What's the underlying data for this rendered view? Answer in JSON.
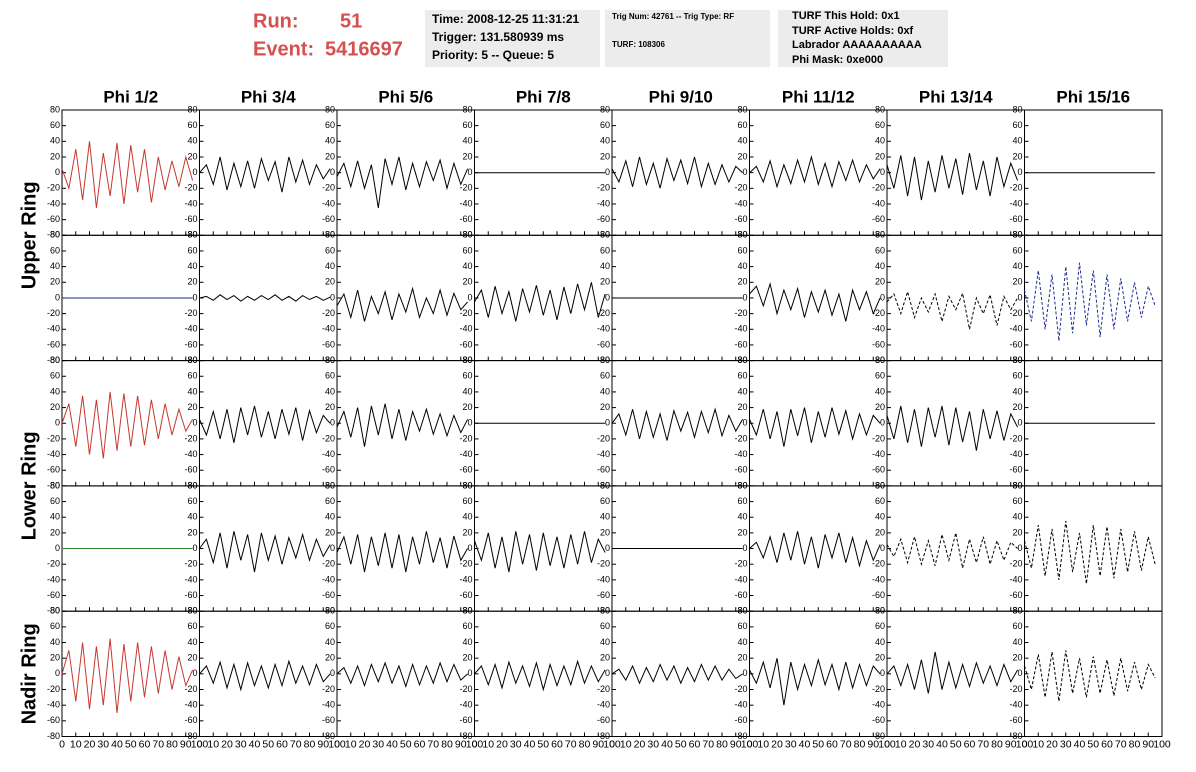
{
  "header": {
    "run_label": "Run:",
    "run": "51",
    "event_label": "Event:",
    "event": "5416697"
  },
  "info_boxes": [
    [
      "Time: 2008-12-25 11:31:21",
      "Trigger: 131.580939 ms",
      "Priority: 5 -- Queue: 5"
    ],
    [
      "Trig Num: 42761 -- Trig Type: RF",
      "TURF: 108306"
    ],
    [
      "TURF This Hold: 0x1",
      "TURF Active Holds: 0xf",
      "Labrador AAAAAAAAAA",
      "Phi Mask: 0xe000"
    ]
  ],
  "columns": [
    "Phi 1/2",
    "Phi 3/4",
    "Phi 5/6",
    "Phi 7/8",
    "Phi 9/10",
    "Phi 11/12",
    "Phi 13/14",
    "Phi 15/16"
  ],
  "ring_labels": [
    "Upper Ring",
    "Lower Ring",
    "Nadir Ring"
  ],
  "axes": {
    "xlim": [
      0,
      100
    ],
    "ylim": [
      -80,
      80
    ],
    "xticks": [
      0,
      10,
      20,
      30,
      40,
      50,
      60,
      70,
      80,
      90,
      100
    ],
    "yticks": [
      -80,
      -60,
      -40,
      -20,
      0,
      20,
      40,
      60,
      80
    ],
    "sample_x": [
      0,
      5,
      10,
      15,
      20,
      25,
      30,
      35,
      40,
      45,
      50,
      55,
      60,
      65,
      70,
      75,
      80,
      85,
      90,
      95
    ]
  },
  "panels": [
    [
      {
        "color": "#c8372d",
        "dashed": false,
        "values": [
          5,
          -20,
          30,
          -35,
          40,
          -45,
          25,
          -30,
          38,
          -40,
          35,
          -25,
          30,
          -38,
          20,
          -22,
          15,
          -18,
          20,
          -10
        ]
      },
      {
        "color": "#000000",
        "dashed": false,
        "values": [
          0,
          10,
          -15,
          20,
          -22,
          12,
          -18,
          15,
          -20,
          18,
          -10,
          14,
          -25,
          20,
          -12,
          16,
          -15,
          10,
          -8,
          5
        ]
      },
      {
        "color": "#000000",
        "dashed": false,
        "values": [
          -5,
          12,
          -18,
          15,
          -20,
          10,
          -45,
          18,
          -15,
          20,
          -22,
          12,
          -18,
          14,
          -10,
          16,
          -20,
          12,
          -15,
          5
        ]
      },
      {
        "color": "#000000",
        "dashed": false,
        "values": [
          0,
          0,
          0,
          0,
          0,
          0,
          0,
          0,
          0,
          0,
          0,
          0,
          0,
          0,
          0,
          0,
          0,
          0,
          0,
          0
        ]
      },
      {
        "color": "#000000",
        "dashed": false,
        "values": [
          5,
          -12,
          15,
          -18,
          20,
          -15,
          12,
          -20,
          18,
          -10,
          16,
          -14,
          20,
          -18,
          12,
          -15,
          10,
          -12,
          8,
          0
        ]
      },
      {
        "color": "#000000",
        "dashed": false,
        "values": [
          0,
          8,
          -12,
          15,
          -18,
          10,
          -14,
          16,
          -12,
          20,
          -15,
          12,
          -18,
          14,
          -10,
          16,
          -12,
          10,
          -8,
          5
        ]
      },
      {
        "color": "#000000",
        "dashed": false,
        "values": [
          10,
          -20,
          22,
          -30,
          20,
          -35,
          15,
          -25,
          22,
          -20,
          18,
          -28,
          25,
          -22,
          15,
          -30,
          20,
          -18,
          12,
          -10
        ]
      },
      {
        "color": "#000000",
        "dashed": false,
        "values": [
          0,
          0,
          0,
          0,
          0,
          0,
          0,
          0,
          0,
          0,
          0,
          0,
          0,
          0,
          0,
          0,
          0,
          0,
          0,
          0
        ]
      }
    ],
    [
      {
        "color": "#1f2a8f",
        "dashed": false,
        "values": [
          0,
          0,
          0,
          0,
          0,
          0,
          0,
          0,
          0,
          0,
          0,
          0,
          0,
          0,
          0,
          0,
          0,
          0,
          0,
          0
        ]
      },
      {
        "color": "#000000",
        "dashed": false,
        "values": [
          0,
          2,
          -3,
          4,
          -2,
          3,
          -4,
          2,
          -3,
          3,
          -2,
          4,
          -3,
          2,
          -4,
          3,
          -2,
          2,
          -3,
          1
        ]
      },
      {
        "color": "#000000",
        "dashed": false,
        "values": [
          -10,
          5,
          -25,
          10,
          -30,
          2,
          -20,
          8,
          -28,
          5,
          -18,
          12,
          -25,
          0,
          -20,
          10,
          -22,
          6,
          -15,
          -5
        ]
      },
      {
        "color": "#000000",
        "dashed": false,
        "values": [
          -5,
          10,
          -25,
          15,
          -20,
          8,
          -30,
          12,
          -18,
          16,
          -22,
          10,
          -28,
          14,
          -20,
          18,
          -15,
          20,
          -25,
          5
        ]
      },
      {
        "color": "#000000",
        "dashed": false,
        "values": [
          0,
          0,
          0,
          0,
          0,
          0,
          0,
          0,
          0,
          0,
          0,
          0,
          0,
          0,
          0,
          0,
          0,
          0,
          0,
          0
        ]
      },
      {
        "color": "#000000",
        "dashed": false,
        "values": [
          5,
          15,
          -10,
          18,
          -20,
          10,
          -15,
          12,
          -25,
          8,
          -18,
          10,
          -22,
          5,
          -30,
          10,
          -15,
          8,
          -20,
          0
        ]
      },
      {
        "color": "#000000",
        "dashed": true,
        "values": [
          -5,
          5,
          -20,
          8,
          -25,
          0,
          -18,
          5,
          -30,
          2,
          -15,
          6,
          -40,
          0,
          -20,
          4,
          -35,
          2,
          -15,
          0
        ]
      },
      {
        "color": "#1f2a8f",
        "dashed": true,
        "values": [
          10,
          -30,
          35,
          -40,
          30,
          -55,
          40,
          -45,
          45,
          -35,
          35,
          -50,
          30,
          -40,
          25,
          -30,
          20,
          -25,
          15,
          -10
        ]
      }
    ],
    [
      {
        "color": "#c8372d",
        "dashed": false,
        "values": [
          0,
          25,
          -30,
          35,
          -40,
          30,
          -45,
          40,
          -35,
          38,
          -30,
          35,
          -28,
          30,
          -20,
          25,
          -15,
          18,
          -10,
          5
        ]
      },
      {
        "color": "#000000",
        "dashed": false,
        "values": [
          5,
          -15,
          15,
          -20,
          18,
          -25,
          20,
          -15,
          22,
          -18,
          15,
          -20,
          18,
          -14,
          20,
          -22,
          16,
          -12,
          10,
          0
        ]
      },
      {
        "color": "#000000",
        "dashed": false,
        "values": [
          -5,
          15,
          -18,
          20,
          -30,
          22,
          -15,
          25,
          -20,
          18,
          -22,
          15,
          -10,
          18,
          -14,
          12,
          -16,
          10,
          -12,
          5
        ]
      },
      {
        "color": "#000000",
        "dashed": false,
        "values": [
          0,
          0,
          0,
          0,
          0,
          0,
          0,
          0,
          0,
          0,
          0,
          0,
          0,
          0,
          0,
          0,
          0,
          0,
          0,
          0
        ]
      },
      {
        "color": "#000000",
        "dashed": false,
        "values": [
          0,
          12,
          -15,
          18,
          -20,
          15,
          -18,
          12,
          -22,
          16,
          -10,
          14,
          -18,
          15,
          -12,
          18,
          -16,
          10,
          -10,
          5
        ]
      },
      {
        "color": "#000000",
        "dashed": false,
        "values": [
          5,
          -15,
          18,
          -20,
          15,
          -30,
          18,
          -16,
          20,
          -25,
          15,
          -18,
          20,
          -14,
          16,
          -20,
          12,
          -15,
          10,
          0
        ]
      },
      {
        "color": "#000000",
        "dashed": false,
        "values": [
          10,
          -20,
          22,
          -25,
          18,
          -30,
          20,
          -18,
          22,
          -28,
          20,
          -24,
          15,
          -35,
          18,
          -20,
          16,
          -22,
          12,
          -5
        ]
      },
      {
        "color": "#000000",
        "dashed": false,
        "values": [
          0,
          0,
          0,
          0,
          0,
          0,
          0,
          0,
          0,
          0,
          0,
          0,
          0,
          0,
          0,
          0,
          0,
          0,
          0,
          0
        ]
      }
    ],
    [
      {
        "color": "#2e8b2e",
        "dashed": false,
        "values": [
          0,
          0,
          0,
          0,
          0,
          0,
          0,
          0,
          0,
          0,
          0,
          0,
          0,
          0,
          0,
          0,
          0,
          0,
          0,
          0
        ]
      },
      {
        "color": "#000000",
        "dashed": false,
        "values": [
          0,
          12,
          -18,
          20,
          -25,
          22,
          -15,
          18,
          -30,
          20,
          -15,
          16,
          -20,
          14,
          -12,
          18,
          -15,
          12,
          -10,
          5
        ]
      },
      {
        "color": "#000000",
        "dashed": false,
        "values": [
          -5,
          15,
          -20,
          18,
          -30,
          15,
          -22,
          20,
          -25,
          18,
          -30,
          15,
          -20,
          22,
          -18,
          14,
          -25,
          16,
          -15,
          0
        ]
      },
      {
        "color": "#000000",
        "dashed": false,
        "values": [
          10,
          -15,
          20,
          -25,
          15,
          -30,
          22,
          -20,
          18,
          -28,
          20,
          -22,
          15,
          -25,
          18,
          -20,
          22,
          -18,
          12,
          -5
        ]
      },
      {
        "color": "#000000",
        "dashed": false,
        "values": [
          0,
          0,
          0,
          0,
          0,
          0,
          0,
          0,
          0,
          0,
          0,
          0,
          0,
          0,
          0,
          0,
          0,
          0,
          0,
          0
        ]
      },
      {
        "color": "#000000",
        "dashed": false,
        "values": [
          0,
          8,
          -12,
          15,
          -18,
          20,
          -15,
          22,
          -20,
          15,
          -25,
          18,
          -12,
          20,
          -18,
          14,
          -22,
          10,
          -15,
          5
        ]
      },
      {
        "color": "#000000",
        "dashed": true,
        "values": [
          5,
          -10,
          12,
          -18,
          15,
          -20,
          10,
          -22,
          18,
          -15,
          20,
          -25,
          12,
          -18,
          15,
          -20,
          10,
          -15,
          8,
          0
        ]
      },
      {
        "color": "#000000",
        "dashed": true,
        "values": [
          10,
          -25,
          30,
          -35,
          25,
          -40,
          35,
          -30,
          20,
          -45,
          30,
          -35,
          28,
          -38,
          25,
          -30,
          22,
          -28,
          15,
          -20
        ]
      }
    ],
    [
      {
        "color": "#c8372d",
        "dashed": false,
        "values": [
          0,
          30,
          -35,
          40,
          -45,
          35,
          -40,
          45,
          -50,
          38,
          -35,
          40,
          -30,
          35,
          -25,
          30,
          -20,
          22,
          -15,
          5
        ]
      },
      {
        "color": "#000000",
        "dashed": false,
        "values": [
          0,
          10,
          -12,
          15,
          -18,
          12,
          -20,
          14,
          -15,
          10,
          -18,
          12,
          -15,
          16,
          -12,
          10,
          -14,
          12,
          -10,
          0
        ]
      },
      {
        "color": "#000000",
        "dashed": false,
        "values": [
          0,
          8,
          -12,
          10,
          -15,
          12,
          -10,
          14,
          -12,
          10,
          -16,
          12,
          -14,
          10,
          -12,
          14,
          -10,
          12,
          -8,
          0
        ]
      },
      {
        "color": "#000000",
        "dashed": false,
        "values": [
          0,
          10,
          -14,
          12,
          -18,
          15,
          -12,
          10,
          -16,
          14,
          -20,
          12,
          -15,
          10,
          -14,
          16,
          -12,
          10,
          -10,
          5
        ]
      },
      {
        "color": "#000000",
        "dashed": false,
        "values": [
          0,
          6,
          -8,
          10,
          -12,
          8,
          -10,
          12,
          -8,
          10,
          -12,
          8,
          -10,
          12,
          -8,
          10,
          -8,
          6,
          -6,
          0
        ]
      },
      {
        "color": "#000000",
        "dashed": false,
        "values": [
          5,
          -12,
          15,
          -18,
          20,
          -40,
          15,
          -20,
          12,
          -15,
          18,
          -14,
          12,
          -20,
          15,
          -18,
          12,
          -15,
          10,
          0
        ]
      },
      {
        "color": "#000000",
        "dashed": false,
        "values": [
          0,
          10,
          -15,
          12,
          -20,
          18,
          -25,
          28,
          -20,
          15,
          -18,
          12,
          -16,
          14,
          -12,
          10,
          -15,
          12,
          -10,
          5
        ]
      },
      {
        "color": "#000000",
        "dashed": true,
        "values": [
          10,
          -20,
          25,
          -30,
          28,
          -35,
          30,
          -25,
          20,
          -30,
          22,
          -25,
          18,
          -28,
          20,
          -22,
          15,
          -20,
          12,
          -5
        ]
      }
    ]
  ]
}
